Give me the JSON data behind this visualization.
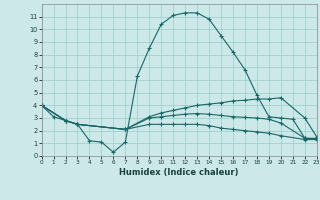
{
  "background_color": "#cce8e8",
  "grid_color": "#99cccc",
  "line_color": "#1a6666",
  "xlabel": "Humidex (Indice chaleur)",
  "xlim": [
    0,
    23
  ],
  "ylim": [
    0,
    12
  ],
  "yticks": [
    0,
    1,
    2,
    3,
    4,
    5,
    6,
    7,
    8,
    9,
    10,
    11
  ],
  "xticks": [
    0,
    1,
    2,
    3,
    4,
    5,
    6,
    7,
    8,
    9,
    10,
    11,
    12,
    13,
    14,
    15,
    16,
    17,
    18,
    19,
    20,
    21,
    22,
    23
  ],
  "curve1_x": [
    0,
    1,
    2,
    3,
    4,
    5,
    6,
    7,
    8,
    9,
    10,
    11,
    12,
    13,
    14,
    15,
    16,
    17,
    18,
    19,
    20,
    21,
    22,
    23
  ],
  "curve1_y": [
    4.0,
    3.1,
    2.8,
    2.5,
    1.2,
    1.1,
    0.3,
    1.1,
    6.3,
    8.5,
    10.4,
    11.1,
    11.3,
    11.3,
    10.8,
    9.5,
    8.2,
    6.8,
    4.8,
    3.1,
    3.0,
    2.9,
    1.4,
    1.4
  ],
  "curve2_x": [
    0,
    2,
    3,
    7,
    9,
    10,
    11,
    12,
    13,
    14,
    15,
    16,
    17,
    18,
    19,
    20,
    22,
    23
  ],
  "curve2_y": [
    4.0,
    2.8,
    2.5,
    2.1,
    3.1,
    3.4,
    3.6,
    3.8,
    4.0,
    4.1,
    4.2,
    4.35,
    4.4,
    4.5,
    4.5,
    4.6,
    3.0,
    1.5
  ],
  "curve3_x": [
    0,
    2,
    3,
    7,
    9,
    10,
    11,
    12,
    13,
    14,
    15,
    16,
    17,
    18,
    19,
    20,
    22,
    23
  ],
  "curve3_y": [
    4.0,
    2.8,
    2.5,
    2.1,
    3.0,
    3.1,
    3.2,
    3.3,
    3.35,
    3.3,
    3.2,
    3.1,
    3.05,
    3.0,
    2.9,
    2.6,
    1.4,
    1.35
  ],
  "curve4_x": [
    0,
    2,
    3,
    7,
    9,
    10,
    11,
    12,
    13,
    14,
    15,
    16,
    17,
    18,
    19,
    20,
    22,
    23
  ],
  "curve4_y": [
    4.0,
    2.8,
    2.5,
    2.1,
    2.5,
    2.5,
    2.5,
    2.5,
    2.5,
    2.4,
    2.2,
    2.1,
    2.0,
    1.9,
    1.8,
    1.6,
    1.3,
    1.3
  ]
}
